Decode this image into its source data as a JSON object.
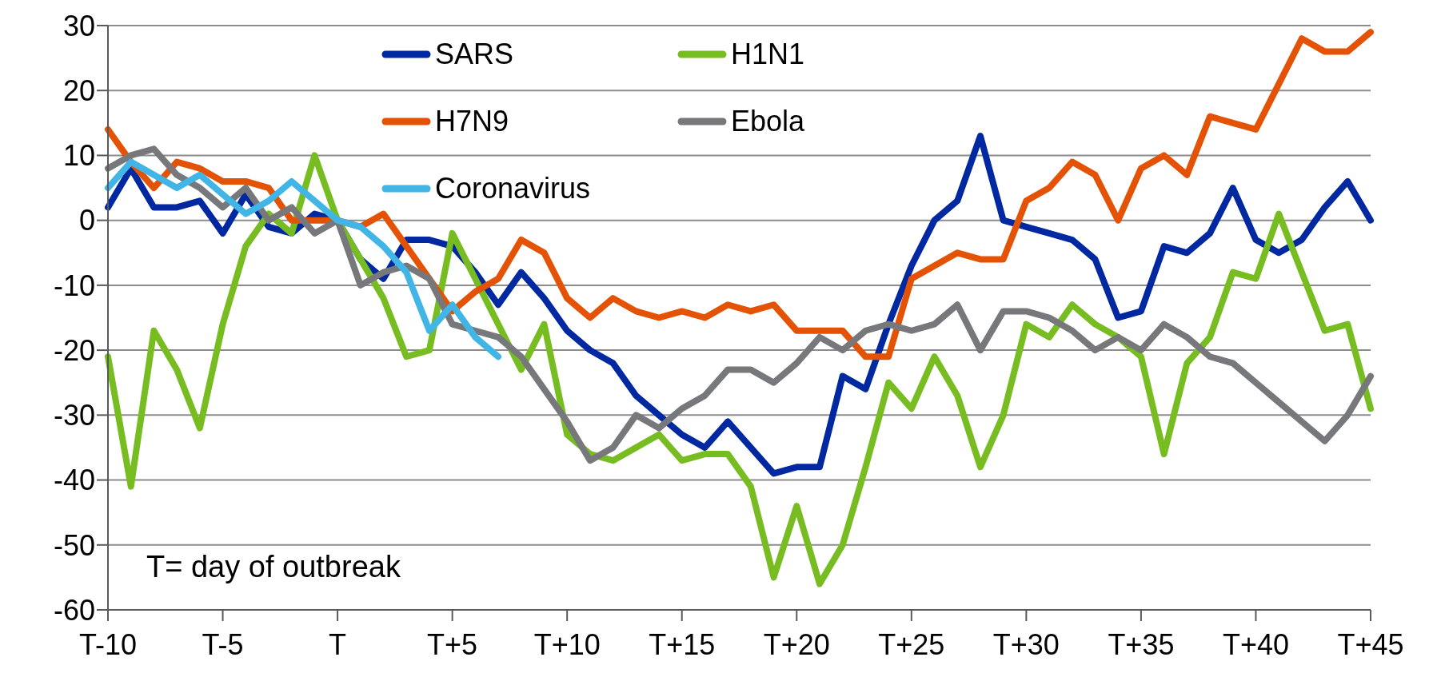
{
  "chart_data": {
    "type": "line",
    "categories": [
      "T-10",
      null,
      null,
      null,
      null,
      "T-5",
      null,
      null,
      null,
      null,
      "T",
      null,
      null,
      null,
      null,
      "T+5",
      null,
      null,
      null,
      null,
      "T+10",
      null,
      null,
      null,
      null,
      "T+15",
      null,
      null,
      null,
      null,
      "T+20",
      null,
      null,
      null,
      null,
      "T+25",
      null,
      null,
      null,
      null,
      "T+30",
      null,
      null,
      null,
      null,
      "T+35",
      null,
      null,
      null,
      null,
      "T+40",
      null,
      null,
      null,
      null,
      "T+45"
    ],
    "series": [
      {
        "name": "SARS",
        "color": "#0028a0",
        "values": [
          2,
          8,
          2,
          2,
          3,
          -2,
          4,
          -1,
          -2,
          1,
          0,
          -6,
          -9,
          -3,
          -3,
          -4,
          -8,
          -13,
          -8,
          -12,
          -17,
          -20,
          -22,
          -27,
          -30,
          -33,
          -35,
          -31,
          -35,
          -39,
          -38,
          -38,
          -24,
          -26,
          -16,
          -7,
          0,
          3,
          13,
          0,
          -1,
          -2,
          -3,
          -6,
          -15,
          -14,
          -4,
          -5,
          -2,
          5,
          -3,
          -5,
          -3,
          2,
          6,
          0
        ]
      },
      {
        "name": "H1N1",
        "color": "#77bd22",
        "values": [
          -21,
          -41,
          -17,
          -23,
          -32,
          -16,
          -4,
          1,
          -2,
          10,
          0,
          -6,
          -12,
          -21,
          -20,
          -2,
          -9,
          -16,
          -23,
          -16,
          -33,
          -36,
          -37,
          -35,
          -33,
          -37,
          -36,
          -36,
          -41,
          -55,
          -44,
          -56,
          -50,
          -38,
          -25,
          -29,
          -21,
          -27,
          -38,
          -30,
          -16,
          -18,
          -13,
          -16,
          -18,
          -21,
          -36,
          -22,
          -18,
          -8,
          -9,
          1,
          -8,
          -17,
          -16,
          -29
        ]
      },
      {
        "name": "H7N9",
        "color": "#e35205",
        "values": [
          14,
          9,
          5,
          9,
          8,
          6,
          6,
          5,
          0,
          0,
          0,
          -1,
          1,
          -4,
          -9,
          -14,
          -11,
          -9,
          -3,
          -5,
          -12,
          -15,
          -12,
          -14,
          -15,
          -14,
          -15,
          -13,
          -14,
          -13,
          -17,
          -17,
          -17,
          -21,
          -21,
          -9,
          -7,
          -5,
          -6,
          -6,
          3,
          5,
          9,
          7,
          0,
          8,
          10,
          7,
          16,
          15,
          14,
          21,
          28,
          26,
          26,
          29
        ]
      },
      {
        "name": "Ebola",
        "color": "#76787b",
        "values": [
          8,
          10,
          11,
          7,
          5,
          2,
          5,
          0,
          2,
          -2,
          0,
          -10,
          -8,
          -7,
          -9,
          -16,
          -17,
          -18,
          -21,
          -26,
          -31,
          -37,
          -35,
          -30,
          -32,
          -29,
          -27,
          -23,
          -23,
          -25,
          -22,
          -18,
          -20,
          -17,
          -16,
          -17,
          -16,
          -13,
          -20,
          -14,
          -14,
          -15,
          -17,
          -20,
          -18,
          -20,
          -16,
          -18,
          -21,
          -22,
          -25,
          -28,
          -31,
          -34,
          -30,
          -24
        ]
      },
      {
        "name": "Coronavirus",
        "color": "#41b6e6",
        "values": [
          5,
          9,
          7,
          5,
          7,
          4,
          1,
          3,
          6,
          3,
          0,
          -1,
          -4,
          -8,
          -17,
          -13,
          -18,
          -21,
          null,
          null,
          null,
          null,
          null,
          null,
          null,
          null,
          null,
          null,
          null,
          null,
          null,
          null,
          null,
          null,
          null,
          null,
          null,
          null,
          null,
          null,
          null,
          null,
          null,
          null,
          null,
          null,
          null,
          null,
          null,
          null,
          null,
          null,
          null,
          null,
          null,
          null
        ]
      }
    ],
    "ylim": [
      -60,
      30
    ],
    "yticks": [
      -60,
      -50,
      -40,
      -30,
      -20,
      -10,
      0,
      10,
      20,
      30
    ],
    "grid": "y",
    "legend": "top",
    "marker": "none",
    "line_style": "solid",
    "annotations": [
      "T= day of outbreak"
    ]
  }
}
